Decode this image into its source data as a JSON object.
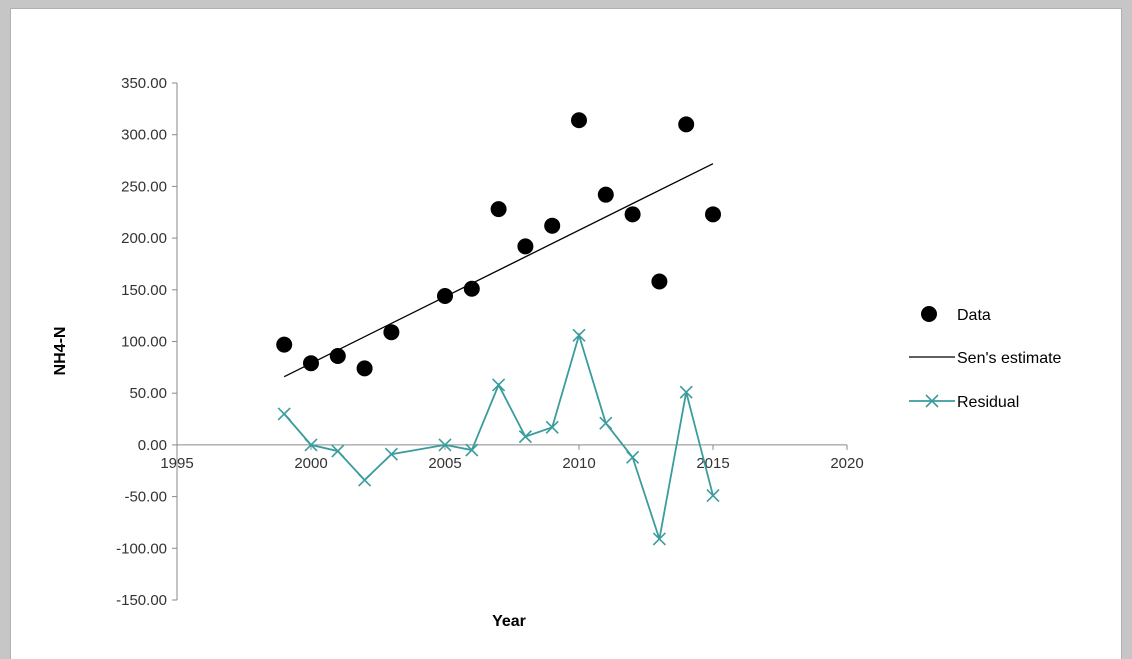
{
  "chart_data": {
    "type": "scatter",
    "title": "",
    "xlabel": "Year",
    "ylabel": "NH4-N",
    "xlim": [
      1995,
      2020
    ],
    "ylim": [
      -150,
      350
    ],
    "xticks": [
      1995,
      2000,
      2005,
      2010,
      2015,
      2020
    ],
    "yticks": [
      350,
      300,
      250,
      200,
      150,
      100,
      50,
      0,
      -50,
      -100,
      -150
    ],
    "x_tick_labels": [
      "1995",
      "2000",
      "2005",
      "2010",
      "2015",
      "2020"
    ],
    "y_tick_labels": [
      "350.00",
      "300.00",
      "250.00",
      "200.00",
      "150.00",
      "100.00",
      "50.00",
      "0.00",
      "-50.00",
      "-100.00",
      "-150.00"
    ],
    "grid": false,
    "legend_position": "right",
    "series": [
      {
        "name": "Data",
        "kind": "markers",
        "color": "#000000",
        "x": [
          1999,
          2000,
          2001,
          2002,
          2003,
          2005,
          2006,
          2007,
          2008,
          2009,
          2010,
          2011,
          2012,
          2013,
          2014,
          2015
        ],
        "y": [
          97,
          79,
          86,
          74,
          109,
          144,
          151,
          228,
          192,
          212,
          314,
          242,
          223,
          158,
          310,
          223
        ]
      },
      {
        "name": "Sen's estimate",
        "kind": "line",
        "color": "#000000",
        "x": [
          1999,
          2015
        ],
        "y": [
          66,
          272
        ]
      },
      {
        "name": "Residual",
        "kind": "line-x-markers",
        "color": "#3a9c9c",
        "x": [
          1999,
          2000,
          2001,
          2002,
          2003,
          2005,
          2006,
          2007,
          2008,
          2009,
          2010,
          2011,
          2012,
          2013,
          2014,
          2015
        ],
        "y": [
          30,
          0,
          -6,
          -34,
          -9,
          0,
          -5,
          58,
          8,
          17,
          106,
          21,
          -12,
          -91,
          51,
          -49
        ]
      }
    ]
  }
}
